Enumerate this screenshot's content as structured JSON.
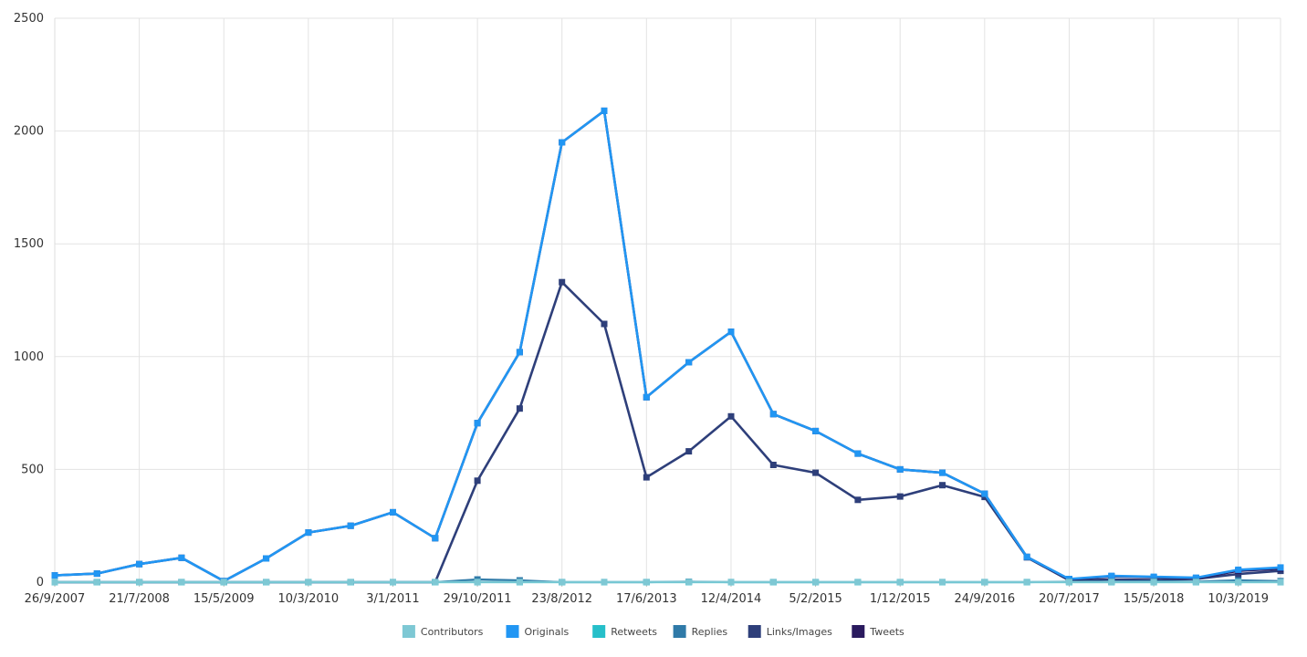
{
  "chart_data": {
    "type": "line",
    "title": "",
    "xlabel": "",
    "ylabel": "",
    "ylim": [
      0,
      2500
    ],
    "yticks": [
      0,
      500,
      1000,
      1500,
      2000,
      2500
    ],
    "x": [
      "26/9/2007",
      "",
      "21/7/2008",
      "",
      "15/5/2009",
      "",
      "10/3/2010",
      "",
      "3/1/2011",
      "",
      "29/10/2011",
      "",
      "23/8/2012",
      "",
      "17/6/2013",
      "",
      "12/4/2014",
      "",
      "5/2/2015",
      "",
      "1/12/2015",
      "",
      "24/9/2016",
      "",
      "20/7/2017",
      "",
      "15/5/2018",
      "",
      "10/3/2019",
      ""
    ],
    "x_tick_labels": [
      "26/9/2007",
      "21/7/2008",
      "15/5/2009",
      "10/3/2010",
      "3/1/2011",
      "29/10/2011",
      "23/8/2012",
      "17/6/2013",
      "12/4/2014",
      "5/2/2015",
      "1/12/2015",
      "24/9/2016",
      "20/7/2017",
      "15/5/2018",
      "10/3/2019"
    ],
    "grid": true,
    "legend_position": "bottom",
    "series": [
      {
        "name": "Contributors",
        "color": "#7ec8d4",
        "values": [
          1,
          1,
          1,
          1,
          1,
          1,
          1,
          1,
          1,
          1,
          1,
          1,
          1,
          1,
          1,
          1,
          1,
          1,
          1,
          1,
          1,
          1,
          1,
          1,
          1,
          1,
          1,
          1,
          1,
          1
        ]
      },
      {
        "name": "Originals",
        "color": "#2196f3",
        "values": [
          30,
          38,
          80,
          108,
          5,
          105,
          220,
          250,
          310,
          195,
          705,
          1020,
          1950,
          2090,
          820,
          975,
          1110,
          745,
          670,
          570,
          500,
          485,
          392,
          112,
          14,
          28,
          24,
          20,
          55,
          65
        ]
      },
      {
        "name": "Retweets",
        "color": "#26bfc9",
        "values": [
          0,
          0,
          0,
          0,
          0,
          0,
          0,
          0,
          0,
          0,
          0,
          0,
          0,
          0,
          0,
          0,
          0,
          0,
          0,
          0,
          0,
          0,
          0,
          0,
          0,
          0,
          0,
          0,
          0,
          0
        ]
      },
      {
        "name": "Replies",
        "color": "#2f7aa8",
        "values": [
          0,
          0,
          0,
          0,
          0,
          0,
          0,
          0,
          0,
          0,
          12,
          8,
          0,
          0,
          0,
          2,
          0,
          0,
          0,
          0,
          0,
          0,
          0,
          0,
          2,
          3,
          4,
          3,
          8,
          5
        ]
      },
      {
        "name": "Links/Images",
        "color": "#2e3f7a",
        "values": [
          0,
          0,
          0,
          0,
          0,
          0,
          0,
          0,
          0,
          0,
          450,
          770,
          1330,
          1145,
          465,
          580,
          735,
          520,
          485,
          365,
          380,
          430,
          378,
          110,
          8,
          12,
          10,
          14,
          36,
          50
        ]
      },
      {
        "name": "Tweets",
        "color": "#2a1a5e",
        "values": [
          30,
          38,
          80,
          108,
          5,
          105,
          220,
          250,
          310,
          195,
          705,
          1020,
          1950,
          2090,
          820,
          975,
          1110,
          745,
          670,
          570,
          500,
          485,
          392,
          112,
          12,
          26,
          22,
          18,
          50,
          60
        ]
      }
    ]
  }
}
